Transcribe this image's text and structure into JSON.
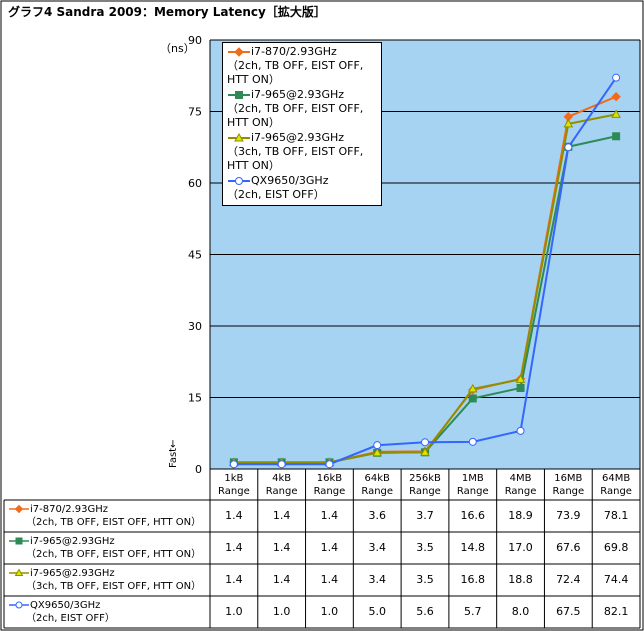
{
  "chart_data": {
    "type": "line",
    "title": "グラフ4  Sandra 2009：Memory Latency［拡大版］",
    "y_label": "（ns）",
    "y_note": "Fast←",
    "categories": [
      "1kB Range",
      "4kB Range",
      "16kB Range",
      "64kB Range",
      "256kB Range",
      "1MB Range",
      "4MB Range",
      "16MB Range",
      "64MB Range"
    ],
    "ylim": [
      0,
      90
    ],
    "yticks": [
      0,
      15,
      30,
      45,
      60,
      75,
      90
    ],
    "grid": true,
    "series": [
      {
        "name": "i7-870/2.93GHz",
        "detail": "（2ch, TB OFF, EIST OFF, HTT ON）",
        "color": "#f26a1b",
        "marker": "diamond",
        "marker_fill": "#f26a1b",
        "values": [
          1.4,
          1.4,
          1.4,
          3.6,
          3.7,
          16.6,
          18.9,
          73.9,
          78.1
        ],
        "value_labels": [
          "1.4",
          "1.4",
          "1.4",
          "3.6",
          "3.7",
          "16.6",
          "18.9",
          "73.9",
          "78.1"
        ]
      },
      {
        "name": "i7-965@2.93GHz",
        "detail": "（2ch, TB OFF, EIST OFF, HTT ON）",
        "color": "#2e8b57",
        "marker": "square",
        "marker_fill": "#2e8b57",
        "values": [
          1.4,
          1.4,
          1.4,
          3.4,
          3.5,
          14.8,
          17.0,
          67.6,
          69.8
        ],
        "value_labels": [
          "1.4",
          "1.4",
          "1.4",
          "3.4",
          "3.5",
          "14.8",
          "17.0",
          "67.6",
          "69.8"
        ]
      },
      {
        "name": "i7-965@2.93GHz",
        "detail": "（3ch, TB OFF, EIST OFF, HTT ON）",
        "color": "#8f8f00",
        "marker": "triangle",
        "marker_fill": "#d8e600",
        "values": [
          1.4,
          1.4,
          1.4,
          3.4,
          3.5,
          16.8,
          18.8,
          72.4,
          74.4
        ],
        "value_labels": [
          "1.4",
          "1.4",
          "1.4",
          "3.4",
          "3.5",
          "16.8",
          "18.8",
          "72.4",
          "74.4"
        ]
      },
      {
        "name": "QX9650/3GHz",
        "detail": "（2ch, EIST OFF）",
        "color": "#3366ff",
        "marker": "circle",
        "marker_fill": "#ffffff",
        "values": [
          1.0,
          1.0,
          1.0,
          5.0,
          5.6,
          5.7,
          8.0,
          67.5,
          82.1
        ],
        "value_labels": [
          "1.0",
          "1.0",
          "1.0",
          "5.0",
          "5.6",
          "5.7",
          "8.0",
          "67.5",
          "82.1"
        ]
      }
    ]
  }
}
